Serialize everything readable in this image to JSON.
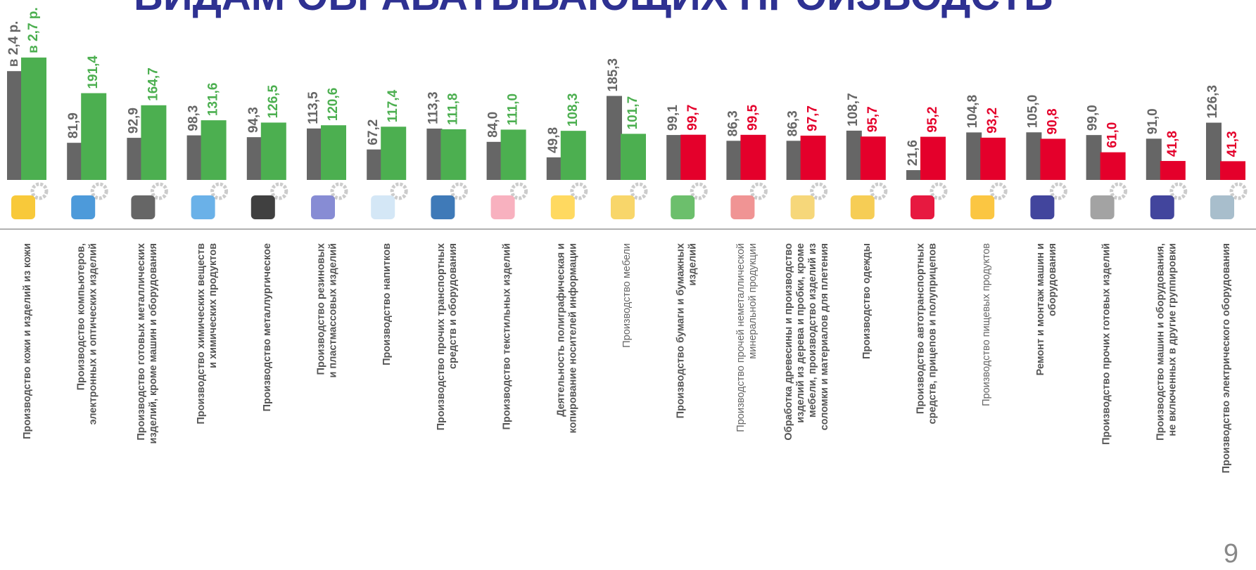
{
  "chart_data": {
    "type": "bar",
    "title": "ВИДАМ ОБРАБАТЫВАЮЩИХ ПРОИЗВОДСТВ",
    "page_number": "9",
    "categories": [
      [
        "Производство кожи и изделий из кожи"
      ],
      [
        "Производство компьютеров,",
        "электронных и оптических изделий"
      ],
      [
        "Производство готовых металлических",
        "изделий, кроме машин и оборудования"
      ],
      [
        "Производство химических  веществ",
        "и химических продуктов"
      ],
      [
        "Производство  металлургическое"
      ],
      [
        "Производство резиновых",
        "и пластмассовых изделий"
      ],
      [
        "Производство напитков"
      ],
      [
        "Производство прочих транспортных",
        "средств и оборудования"
      ],
      [
        "Производство текстильных изделий"
      ],
      [
        "Деятельность полиграфическая и",
        "копирование носителей информации"
      ],
      [
        "Производство мебели"
      ],
      [
        "Производство бумаги и бумажных",
        "изделий"
      ],
      [
        "Производство прочей неметаллической",
        "минеральной продукции"
      ],
      [
        "Обработка древесины и производство",
        "изделий из дерева и пробки, кроме",
        "мебели, производство изделий из",
        "соломки и материалов для плетения"
      ],
      [
        "Производство одежды"
      ],
      [
        "Производство автотранспортных",
        "средств, прицепов и полуприцепов"
      ],
      [
        "Производство пищевых продуктов"
      ],
      [
        "Ремонт и монтаж машин и",
        "оборудования"
      ],
      [
        "Производство прочих  готовых изделий"
      ],
      [
        "Производство машин и оборудования,",
        "не включенных в другие группировки"
      ],
      [
        "Производство электрического оборудования"
      ]
    ],
    "light_categories": [
      10,
      12,
      16
    ],
    "series": [
      {
        "color": "#666666",
        "values": [
          240,
          81.9,
          92.9,
          98.3,
          94.3,
          113.5,
          67.2,
          113.3,
          84.0,
          49.8,
          185.3,
          99.1,
          86.3,
          86.3,
          108.7,
          21.6,
          104.8,
          105.0,
          99.0,
          91.0,
          126.3
        ],
        "value_labels": [
          "в 2,4 р.",
          "81,9",
          "92,9",
          "98,3",
          "94,3",
          "113,5",
          "67,2",
          "113,3",
          "84,0",
          "49,8",
          "185,3",
          "99,1",
          "86,3",
          "86,3",
          "108,7",
          "21,6",
          "104,8",
          "105,0",
          "99,0",
          "91,0",
          "126,3"
        ]
      },
      {
        "color": "#4caf50",
        "colors": [
          "#4caf50",
          "#4caf50",
          "#4caf50",
          "#4caf50",
          "#4caf50",
          "#4caf50",
          "#4caf50",
          "#4caf50",
          "#4caf50",
          "#4caf50",
          "#4caf50",
          "#e4002b",
          "#e4002b",
          "#e4002b",
          "#e4002b",
          "#e4002b",
          "#e4002b",
          "#e4002b",
          "#e4002b",
          "#e4002b",
          "#e4002b"
        ],
        "values": [
          270,
          191.4,
          164.7,
          131.6,
          126.5,
          120.6,
          117.4,
          111.8,
          111.0,
          108.3,
          101.7,
          99.7,
          99.5,
          97.7,
          95.7,
          95.2,
          93.2,
          90.8,
          61.0,
          41.8,
          41.3
        ],
        "value_labels": [
          "в 2,7 р.",
          "191,4",
          "164,7",
          "131,6",
          "126,5",
          "120,6",
          "117,4",
          "111,8",
          "111,0",
          "108,3",
          "101,7",
          "99,7",
          "99,5",
          "97,7",
          "95,7",
          "95,2",
          "93,2",
          "90,8",
          "61,0",
          "41,8",
          "41,3"
        ]
      }
    ]
  }
}
